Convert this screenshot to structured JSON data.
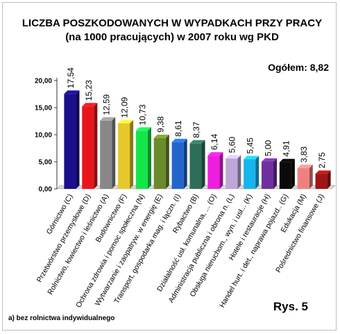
{
  "chart_data": {
    "type": "bar",
    "title": "LICZBA POSZKODOWANYCH W WYPADKACH PRZY PRACY",
    "subtitle": "(na 1000 pracujących) w 2007 roku wg PKD",
    "total_label": "Ogółem: 8,82",
    "figure_label": "Rys. 5",
    "footnote": "a) bez rolnictwa indywidualnego",
    "ylim": [
      0,
      20
    ],
    "yticks": [
      "0,00",
      "5,00",
      "10,00",
      "15,00",
      "20,00"
    ],
    "grid": false,
    "categories": [
      "Górnictwo (C)",
      "Przetwórstwo przemysłowe (D)",
      "Rolnictwo, łowiectwo i leśnictwo (A)",
      "Budownictwo (F)",
      "Ochrona zdrowia i pomoc społeczna (N)",
      "Wytwarzanie i zaopatryw. w energię (E)",
      "Transport, gospodarka mag. i łączn. (I)",
      "Rybactwo (B)",
      "Działalność usł. komunalna, ... (O)",
      "Administracja publiczna i obrona n. (L)",
      "Obsługa nieruchom., wyn. i usł... (K)",
      "Hotele i restauracje (H)",
      "Handel hurt. i det., naprawa pojazd.. (G)",
      "Edukacja (M)",
      "Pośrednictwo finansowe (J)"
    ],
    "values": [
      17.54,
      15.23,
      12.59,
      12.09,
      10.73,
      9.38,
      8.61,
      8.37,
      6.14,
      5.6,
      5.45,
      5.0,
      4.91,
      3.83,
      2.75
    ],
    "value_labels": [
      "17,54",
      "15,23",
      "12,59",
      "12,09",
      "10,73",
      "9,38",
      "8,61",
      "8,37",
      "6,14",
      "5,60",
      "5,45",
      "5,00",
      "4,91",
      "3,83",
      "2,75"
    ],
    "colors": [
      "#1a0f8c",
      "#e8161c",
      "#888888",
      "#e6c82c",
      "#14e64a",
      "#6b8a2a",
      "#2266cc",
      "#2e6e58",
      "#f01ee0",
      "#bba8d8",
      "#18b4ee",
      "#7030a0",
      "#0a0a0a",
      "#f08080",
      "#a01616"
    ]
  }
}
